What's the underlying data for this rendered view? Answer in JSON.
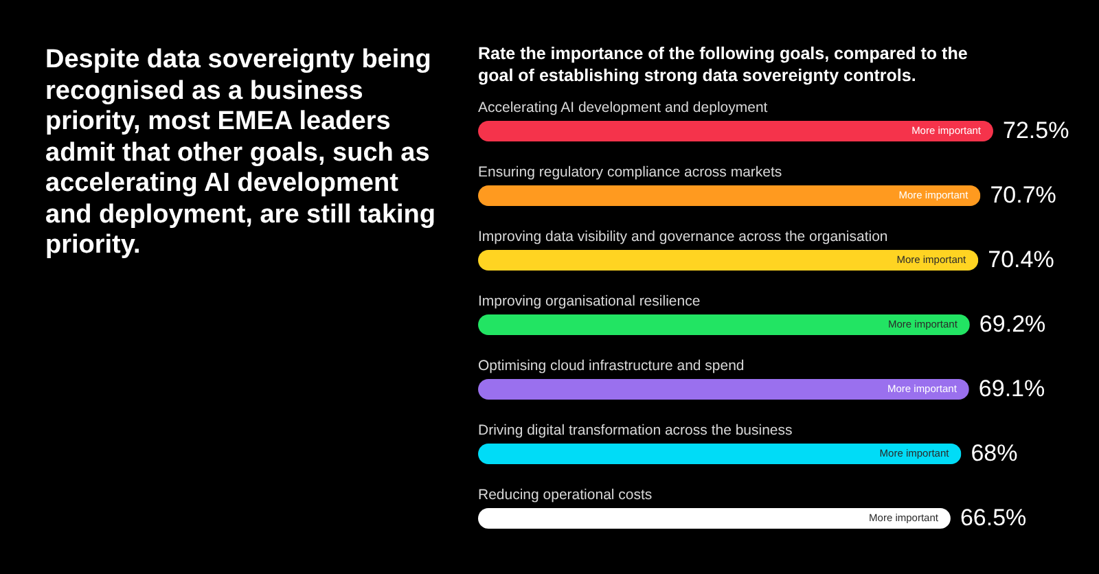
{
  "chart_data": {
    "type": "bar",
    "title": "Despite data sovereignty being recognised as a business priority, most EMEA leaders admit that other goals, such as accelerating AI development and deployment, are still taking priority.",
    "subtitle": "Rate the importance of the following goals, compared to the goal of establishing strong data sovereignty controls.",
    "orientation": "horizontal",
    "categories": [
      "Accelerating AI development and deployment",
      "Ensuring regulatory compliance across markets",
      "Improving data visibility and governance across the organisation",
      "Improving organisational resilience",
      "Optimising cloud infrastructure and spend",
      "Driving digital transformation across the business",
      "Reducing operational costs"
    ],
    "series": [
      {
        "name": "More important",
        "colors": [
          "#f5334b",
          "#ff9a1f",
          "#ffd422",
          "#22e463",
          "#9a70ee",
          "#00dcf7",
          "#ffffff"
        ],
        "values": [
          72.5,
          70.7,
          70.4,
          69.2,
          69.1,
          68,
          66.5
        ],
        "value_labels": [
          "72.5%",
          "70.7%",
          "70.4%",
          "69.2%",
          "69.1%",
          "68%",
          "66.5%"
        ]
      }
    ]
  }
}
